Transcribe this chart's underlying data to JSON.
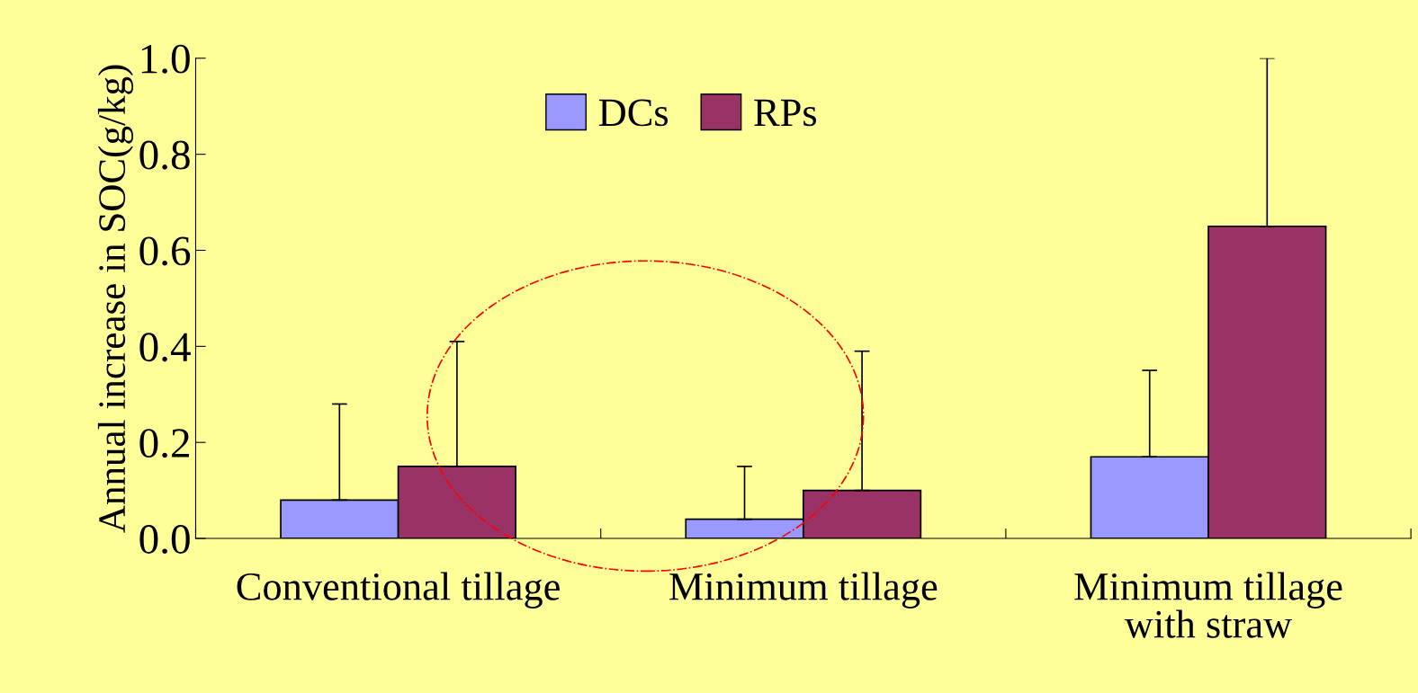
{
  "chart_data": {
    "type": "bar",
    "ylabel": "Annual increase in SOC(g/kg)",
    "categories": [
      "Conventional tillage",
      "Minimum tillage",
      "Minimum tillage\nwith straw"
    ],
    "series": [
      {
        "name": "DCs",
        "color": "#9999ff",
        "values": [
          0.08,
          0.04,
          0.17
        ],
        "errors": [
          [
            0.08,
            0.28
          ],
          [
            0.04,
            0.15
          ],
          [
            0.17,
            0.35
          ]
        ]
      },
      {
        "name": "RPs",
        "color": "#993366",
        "values": [
          0.15,
          0.1,
          0.65
        ],
        "errors": [
          [
            0.15,
            0.41
          ],
          [
            0.1,
            0.39
          ],
          [
            0.65,
            1.0
          ]
        ]
      }
    ],
    "ylim": [
      0,
      1.0
    ],
    "yticks": [
      {
        "value": 0,
        "label": "0.0"
      },
      {
        "value": 0.2,
        "label": "0.2"
      },
      {
        "value": 0.4,
        "label": "0.4"
      },
      {
        "value": 0.6,
        "label": "0.6"
      },
      {
        "value": 0.8,
        "label": "0.8"
      },
      {
        "value": 1.0,
        "label": "1.0"
      }
    ],
    "grid": false,
    "legend": "top"
  }
}
